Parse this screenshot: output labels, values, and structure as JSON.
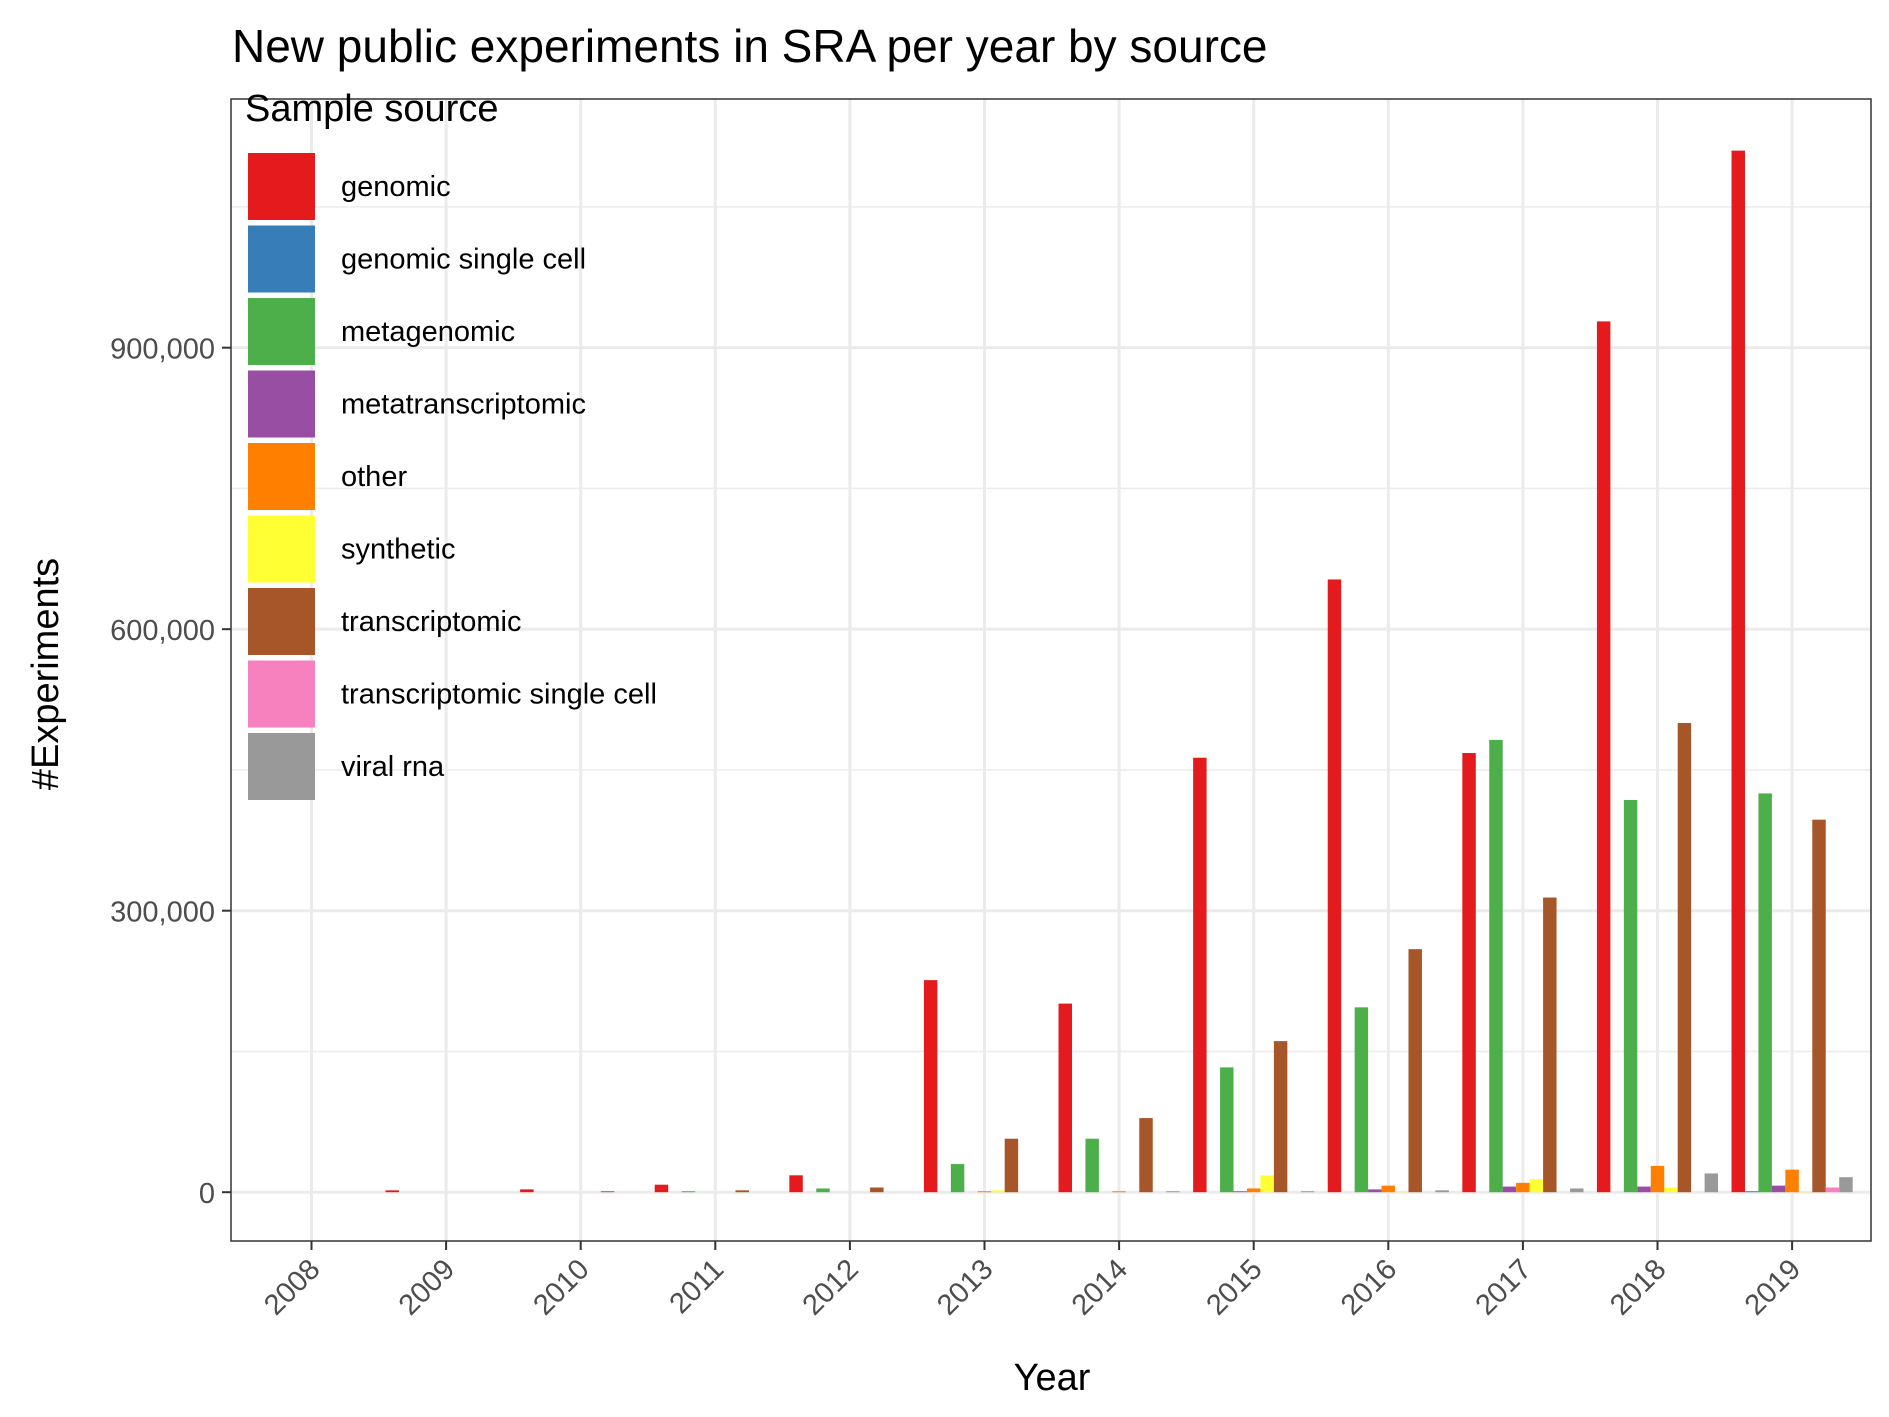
{
  "chart_data": {
    "type": "bar",
    "title": "New public experiments in SRA per year by source",
    "xlabel": "Year",
    "ylabel": "#Experiments",
    "ylim": [
      -52000,
      1165000
    ],
    "yticks": [
      0,
      300000,
      600000,
      900000
    ],
    "ytick_labels": [
      "0",
      "300,000",
      "600,000",
      "900,000"
    ],
    "grid": true,
    "legend_title": "Sample source",
    "legend_position": "top-left inside",
    "categories": [
      "2008",
      "2009",
      "2010",
      "2011",
      "2012",
      "2013",
      "2014",
      "2015",
      "2016",
      "2017",
      "2018",
      "2019"
    ],
    "series": [
      {
        "name": "genomic",
        "color": "#E41A1C",
        "values": [
          0,
          2000,
          3000,
          8000,
          18000,
          226000,
          201000,
          463000,
          653000,
          468000,
          928000,
          1110000
        ]
      },
      {
        "name": "genomic single cell",
        "color": "#377EB8",
        "values": [
          0,
          0,
          0,
          0,
          0,
          0,
          0,
          0,
          0,
          0,
          0,
          1000
        ]
      },
      {
        "name": "metagenomic",
        "color": "#4DAF4A",
        "values": [
          0,
          0,
          0,
          1000,
          4000,
          30000,
          57000,
          133000,
          197000,
          482000,
          418000,
          425000
        ]
      },
      {
        "name": "metatranscriptomic",
        "color": "#984EA3",
        "values": [
          0,
          0,
          0,
          0,
          0,
          0,
          0,
          1000,
          3000,
          6000,
          6000,
          7000
        ]
      },
      {
        "name": "other",
        "color": "#FF7F00",
        "values": [
          0,
          0,
          0,
          0,
          0,
          1000,
          1000,
          4000,
          7000,
          10000,
          28000,
          24000
        ]
      },
      {
        "name": "synthetic",
        "color": "#FFFF33",
        "values": [
          0,
          0,
          0,
          0,
          0,
          2000,
          0,
          18000,
          1000,
          14000,
          5000,
          1000
        ]
      },
      {
        "name": "transcriptomic",
        "color": "#A65628",
        "values": [
          0,
          0,
          1000,
          2000,
          5000,
          57000,
          79000,
          161000,
          259000,
          314000,
          500000,
          397000
        ]
      },
      {
        "name": "transcriptomic single cell",
        "color": "#F781BF",
        "values": [
          0,
          0,
          0,
          0,
          0,
          0,
          0,
          0,
          0,
          0,
          0,
          5000
        ]
      },
      {
        "name": "viral rna",
        "color": "#999999",
        "values": [
          0,
          0,
          0,
          0,
          0,
          0,
          1000,
          1000,
          2000,
          4000,
          20000,
          16000
        ]
      }
    ]
  }
}
